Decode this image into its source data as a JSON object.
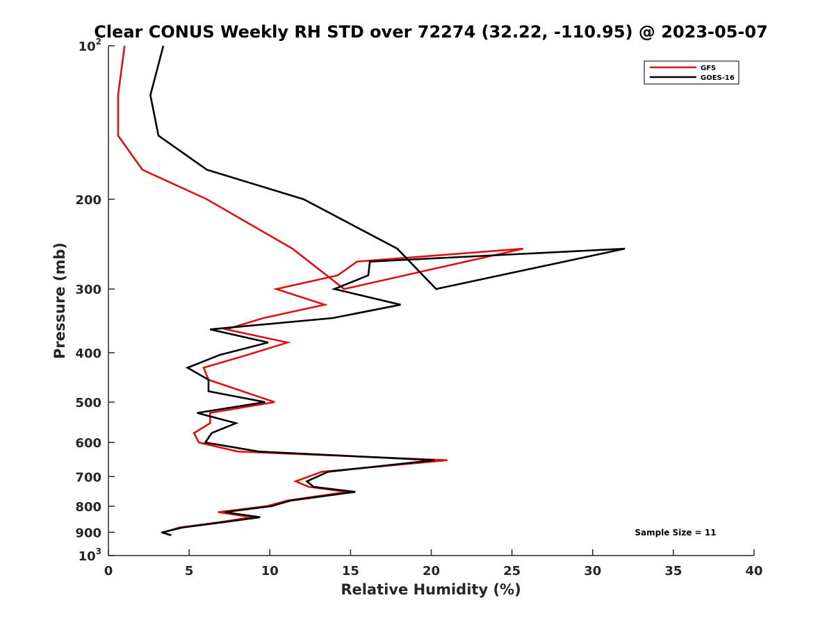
{
  "chart_data": {
    "type": "line",
    "title": "Clear CONUS Weekly RH STD over 72274 (32.22, -110.95) @ 2023-05-07",
    "xlabel": "Relative Humidity (%)",
    "ylabel": "Pressure (mb)",
    "xlim": [
      0,
      40
    ],
    "ylim": [
      100,
      1000
    ],
    "y_scale": "log",
    "y_reversed": true,
    "grid": false,
    "legend_position": "top-right",
    "x_ticks": [
      "0",
      "5",
      "10",
      "15",
      "20",
      "25",
      "30",
      "35",
      "40"
    ],
    "y_ticks": [
      {
        "value": 100,
        "base": "10",
        "exp": "2"
      },
      {
        "value": 200,
        "label": "200"
      },
      {
        "value": 300,
        "label": "300"
      },
      {
        "value": 400,
        "label": "400"
      },
      {
        "value": 500,
        "label": "500"
      },
      {
        "value": 600,
        "label": "600"
      },
      {
        "value": 700,
        "label": "700"
      },
      {
        "value": 800,
        "label": "800"
      },
      {
        "value": 900,
        "label": "900"
      },
      {
        "value": 1000,
        "base": "10",
        "exp": "3"
      }
    ],
    "annotation": "Sample Size = 11",
    "series": [
      {
        "name": "GFS",
        "color": "#e01010",
        "points": [
          [
            1.0,
            100
          ],
          [
            0.6,
            125
          ],
          [
            0.6,
            150
          ],
          [
            2.1,
            175
          ],
          [
            6.1,
            200
          ],
          [
            11.4,
            250
          ],
          [
            14.6,
            300
          ],
          [
            25.7,
            250
          ],
          [
            15.4,
            265
          ],
          [
            14.2,
            282
          ],
          [
            10.4,
            300
          ],
          [
            13.4,
            322
          ],
          [
            9.6,
            342
          ],
          [
            7.3,
            360
          ],
          [
            11.1,
            382
          ],
          [
            8.6,
            404
          ],
          [
            5.9,
            428
          ],
          [
            6.2,
            452
          ],
          [
            8.3,
            476
          ],
          [
            10.3,
            500
          ],
          [
            6.3,
            525
          ],
          [
            6.3,
            550
          ],
          [
            5.3,
            575
          ],
          [
            5.6,
            600
          ],
          [
            8.0,
            625
          ],
          [
            21.0,
            650
          ],
          [
            13.2,
            685
          ],
          [
            11.6,
            715
          ],
          [
            12.4,
            733
          ],
          [
            14.8,
            750
          ],
          [
            11.1,
            780
          ],
          [
            9.8,
            800
          ],
          [
            6.8,
            822
          ],
          [
            8.9,
            841
          ],
          [
            6.8,
            861
          ],
          [
            4.4,
            881
          ],
          [
            3.4,
            901
          ],
          [
            3.8,
            912
          ]
        ]
      },
      {
        "name": "GOES-16",
        "color": "#000000",
        "points": [
          [
            3.4,
            100
          ],
          [
            2.6,
            125
          ],
          [
            3.1,
            150
          ],
          [
            6.1,
            175
          ],
          [
            12.1,
            200
          ],
          [
            17.9,
            250
          ],
          [
            20.3,
            300
          ],
          [
            32.0,
            250
          ],
          [
            16.2,
            265
          ],
          [
            16.1,
            282
          ],
          [
            14.0,
            300
          ],
          [
            18.1,
            322
          ],
          [
            13.9,
            342
          ],
          [
            6.3,
            360
          ],
          [
            9.9,
            382
          ],
          [
            6.9,
            404
          ],
          [
            4.9,
            428
          ],
          [
            6.2,
            452
          ],
          [
            6.2,
            476
          ],
          [
            9.7,
            500
          ],
          [
            5.5,
            525
          ],
          [
            7.9,
            550
          ],
          [
            6.4,
            575
          ],
          [
            6.0,
            600
          ],
          [
            9.3,
            625
          ],
          [
            20.2,
            650
          ],
          [
            13.6,
            685
          ],
          [
            12.3,
            715
          ],
          [
            12.7,
            733
          ],
          [
            15.3,
            750
          ],
          [
            11.3,
            780
          ],
          [
            10.1,
            800
          ],
          [
            7.2,
            822
          ],
          [
            9.4,
            841
          ],
          [
            7.0,
            861
          ],
          [
            4.6,
            881
          ],
          [
            3.3,
            901
          ],
          [
            3.9,
            912
          ]
        ]
      }
    ]
  }
}
